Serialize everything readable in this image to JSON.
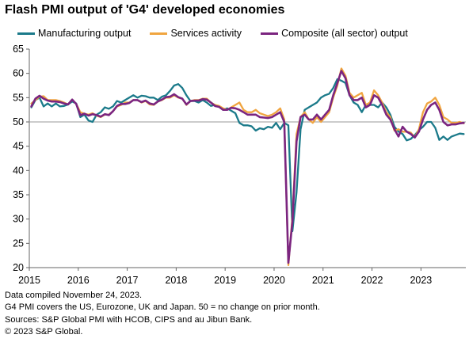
{
  "title": "Flash PMI output of 'G4' developed economies",
  "notes": [
    "Data compiled November 24, 2023.",
    "G4 PMI covers the US, Eurozone, UK and Japan. 50 = no change on prior month.",
    "Sources: S&P Global PMI with HCOB, CIPS and au Jibun Bank.",
    "© 2023 S&P Global."
  ],
  "chart_data": {
    "type": "line",
    "title": "Flash PMI output of 'G4' developed economies",
    "xlabel": "",
    "ylabel": "",
    "x_start": "2015-01",
    "x_end": "2023-11",
    "x_frequency": "monthly",
    "x_ticks": [
      "2015",
      "2016",
      "2017",
      "2018",
      "2019",
      "2020",
      "2021",
      "2022",
      "2023"
    ],
    "y_ticks": [
      20,
      25,
      30,
      35,
      40,
      45,
      50,
      55,
      60,
      65
    ],
    "ylim": [
      20,
      65
    ],
    "reference_line": 50,
    "grid": false,
    "legend_position": "top",
    "series": [
      {
        "name": "Manufacturing output",
        "color": "#1b7a8a",
        "values": [
          53.0,
          54.5,
          55.0,
          53.2,
          53.8,
          53.2,
          53.8,
          53.2,
          53.3,
          53.6,
          54.2,
          53.8,
          51.0,
          51.5,
          50.3,
          50.0,
          51.5,
          52.0,
          53.0,
          52.7,
          53.2,
          54.3,
          54.0,
          54.5,
          55.0,
          55.5,
          55.0,
          55.4,
          55.3,
          55.0,
          55.0,
          54.5,
          55.2,
          55.5,
          56.4,
          57.5,
          57.8,
          57.0,
          55.5,
          54.3,
          54.3,
          54.0,
          54.5,
          54.0,
          53.3,
          53.5,
          53.2,
          52.5,
          52.8,
          52.3,
          51.8,
          49.8,
          49.3,
          49.3,
          49.1,
          48.2,
          48.7,
          48.5,
          49.0,
          48.8,
          49.8,
          48.5,
          49.8,
          49.3,
          27.5,
          35.5,
          48.5,
          52.5,
          53.0,
          53.5,
          54.0,
          55.0,
          55.5,
          55.8,
          57.0,
          58.8,
          58.5,
          58.0,
          55.5,
          54.0,
          53.5,
          52.0,
          53.5,
          53.5,
          53.5,
          53.0,
          54.0,
          53.0,
          51.5,
          49.0,
          48.0,
          47.5,
          46.2,
          46.5,
          47.3,
          48.3,
          49.0,
          50.0,
          50.0,
          48.8,
          46.3,
          47.0,
          46.3,
          47.0,
          47.3,
          47.6,
          47.5
        ]
      },
      {
        "name": "Services activity",
        "color": "#f0a540",
        "values": [
          53.8,
          54.5,
          55.2,
          55.3,
          54.5,
          54.5,
          54.5,
          54.3,
          54.0,
          53.6,
          54.6,
          53.7,
          52.0,
          51.7,
          51.5,
          51.8,
          51.3,
          51.0,
          51.5,
          51.5,
          52.2,
          53.2,
          53.5,
          54.0,
          54.0,
          54.5,
          54.5,
          54.0,
          54.3,
          53.6,
          53.5,
          54.2,
          54.5,
          55.0,
          55.0,
          55.5,
          55.0,
          54.8,
          53.5,
          54.3,
          54.5,
          54.5,
          54.8,
          54.8,
          54.0,
          53.5,
          53.3,
          52.8,
          52.5,
          53.0,
          53.5,
          54.0,
          52.5,
          52.0,
          52.0,
          52.5,
          51.8,
          51.5,
          51.2,
          51.5,
          52.0,
          52.8,
          50.5,
          20.5,
          30.5,
          47.5,
          51.0,
          52.0,
          50.5,
          49.8,
          51.0,
          50.0,
          51.0,
          52.0,
          55.0,
          57.5,
          61.0,
          59.5,
          56.0,
          55.0,
          55.5,
          56.0,
          53.5,
          54.0,
          56.5,
          55.5,
          54.0,
          52.0,
          51.0,
          48.2,
          48.5,
          48.0,
          48.0,
          47.8,
          46.8,
          48.5,
          52.0,
          53.8,
          54.2,
          55.0,
          53.5,
          51.0,
          50.5,
          49.8,
          49.8,
          50.0,
          49.7
        ]
      },
      {
        "name": "Composite (all sector) output",
        "color": "#7b2580",
        "values": [
          53.2,
          54.8,
          55.4,
          54.8,
          54.4,
          54.2,
          54.2,
          54.1,
          53.8,
          53.6,
          54.6,
          53.7,
          51.4,
          51.7,
          51.3,
          51.6,
          51.4,
          51.1,
          51.6,
          51.4,
          52.2,
          53.3,
          53.7,
          53.7,
          53.9,
          54.5,
          54.5,
          54.1,
          54.4,
          53.8,
          53.6,
          54.2,
          54.6,
          55.1,
          55.2,
          55.7,
          55.1,
          54.8,
          53.6,
          54.3,
          54.4,
          54.4,
          54.7,
          54.6,
          54.0,
          53.3,
          53.1,
          52.5,
          52.5,
          52.9,
          52.8,
          52.5,
          52.0,
          51.5,
          51.5,
          51.5,
          51.0,
          50.9,
          50.8,
          51.0,
          51.5,
          52.0,
          50.0,
          21.0,
          29.5,
          46.0,
          51.0,
          51.5,
          50.5,
          50.5,
          51.5,
          50.5,
          51.5,
          52.5,
          55.5,
          58.0,
          60.5,
          59.0,
          55.5,
          54.5,
          54.5,
          55.0,
          53.0,
          53.5,
          55.5,
          55.0,
          53.5,
          51.5,
          50.5,
          48.5,
          47.0,
          49.0,
          48.0,
          47.5,
          46.8,
          48.0,
          50.5,
          52.5,
          53.5,
          54.0,
          52.5,
          50.0,
          49.3,
          49.5,
          49.5,
          49.7,
          49.8
        ]
      }
    ]
  }
}
